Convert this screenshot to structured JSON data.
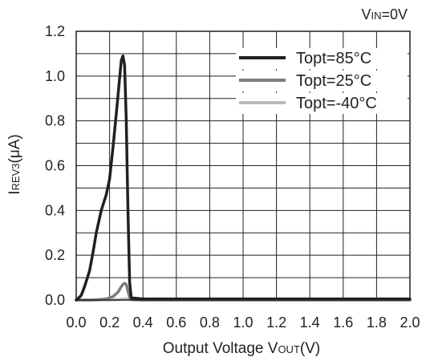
{
  "chart_data": {
    "type": "line",
    "condition": {
      "prefix": "V",
      "subscript": "IN",
      "suffix": "=0V"
    },
    "xlabel": {
      "prefix": "Output Voltage V",
      "subscript": "OUT",
      "suffix": "(V)"
    },
    "ylabel": {
      "prefix": "I",
      "subscript": "REV3",
      "suffix": "(μA)"
    },
    "xlim": [
      0.0,
      2.0
    ],
    "ylim": [
      0.0,
      1.2
    ],
    "x_ticks": [
      "0.0",
      "0.2",
      "0.4",
      "0.6",
      "0.8",
      "1.0",
      "1.2",
      "1.4",
      "1.6",
      "1.8",
      "2.0"
    ],
    "y_ticks": [
      "0.0",
      "0.2",
      "0.4",
      "0.6",
      "0.8",
      "1.0",
      "1.2"
    ],
    "grid": true,
    "legend_position": "top-right",
    "series": [
      {
        "name": "Topt=85°C",
        "color": "#231f20",
        "x": [
          0.0,
          0.03,
          0.05,
          0.08,
          0.1,
          0.12,
          0.15,
          0.18,
          0.2,
          0.22,
          0.24,
          0.26,
          0.27,
          0.28,
          0.29,
          0.3,
          0.31,
          0.32,
          0.33,
          0.4,
          0.6,
          1.0,
          1.5,
          2.0
        ],
        "y": [
          0.0,
          0.02,
          0.06,
          0.13,
          0.21,
          0.3,
          0.4,
          0.47,
          0.54,
          0.68,
          0.83,
          0.99,
          1.07,
          1.09,
          1.05,
          0.8,
          0.4,
          0.08,
          0.01,
          0.005,
          0.005,
          0.005,
          0.005,
          0.005
        ]
      },
      {
        "name": "Topt=25°C",
        "color": "#7d7d7d",
        "x": [
          0.0,
          0.1,
          0.18,
          0.22,
          0.25,
          0.27,
          0.28,
          0.29,
          0.3,
          0.31,
          0.32,
          0.33,
          0.4,
          1.0,
          2.0
        ],
        "y": [
          0.0,
          0.0,
          0.005,
          0.015,
          0.035,
          0.06,
          0.07,
          0.075,
          0.07,
          0.04,
          0.01,
          0.003,
          0.0,
          0.0,
          0.0
        ]
      },
      {
        "name": "Topt=-40°C",
        "color": "#b9b9b9",
        "x": [
          0.0,
          0.2,
          0.26,
          0.28,
          0.3,
          0.32,
          0.34,
          0.5,
          2.0
        ],
        "y": [
          0.0,
          0.0,
          0.002,
          0.004,
          0.004,
          0.002,
          0.0,
          0.0,
          0.0
        ]
      }
    ]
  }
}
